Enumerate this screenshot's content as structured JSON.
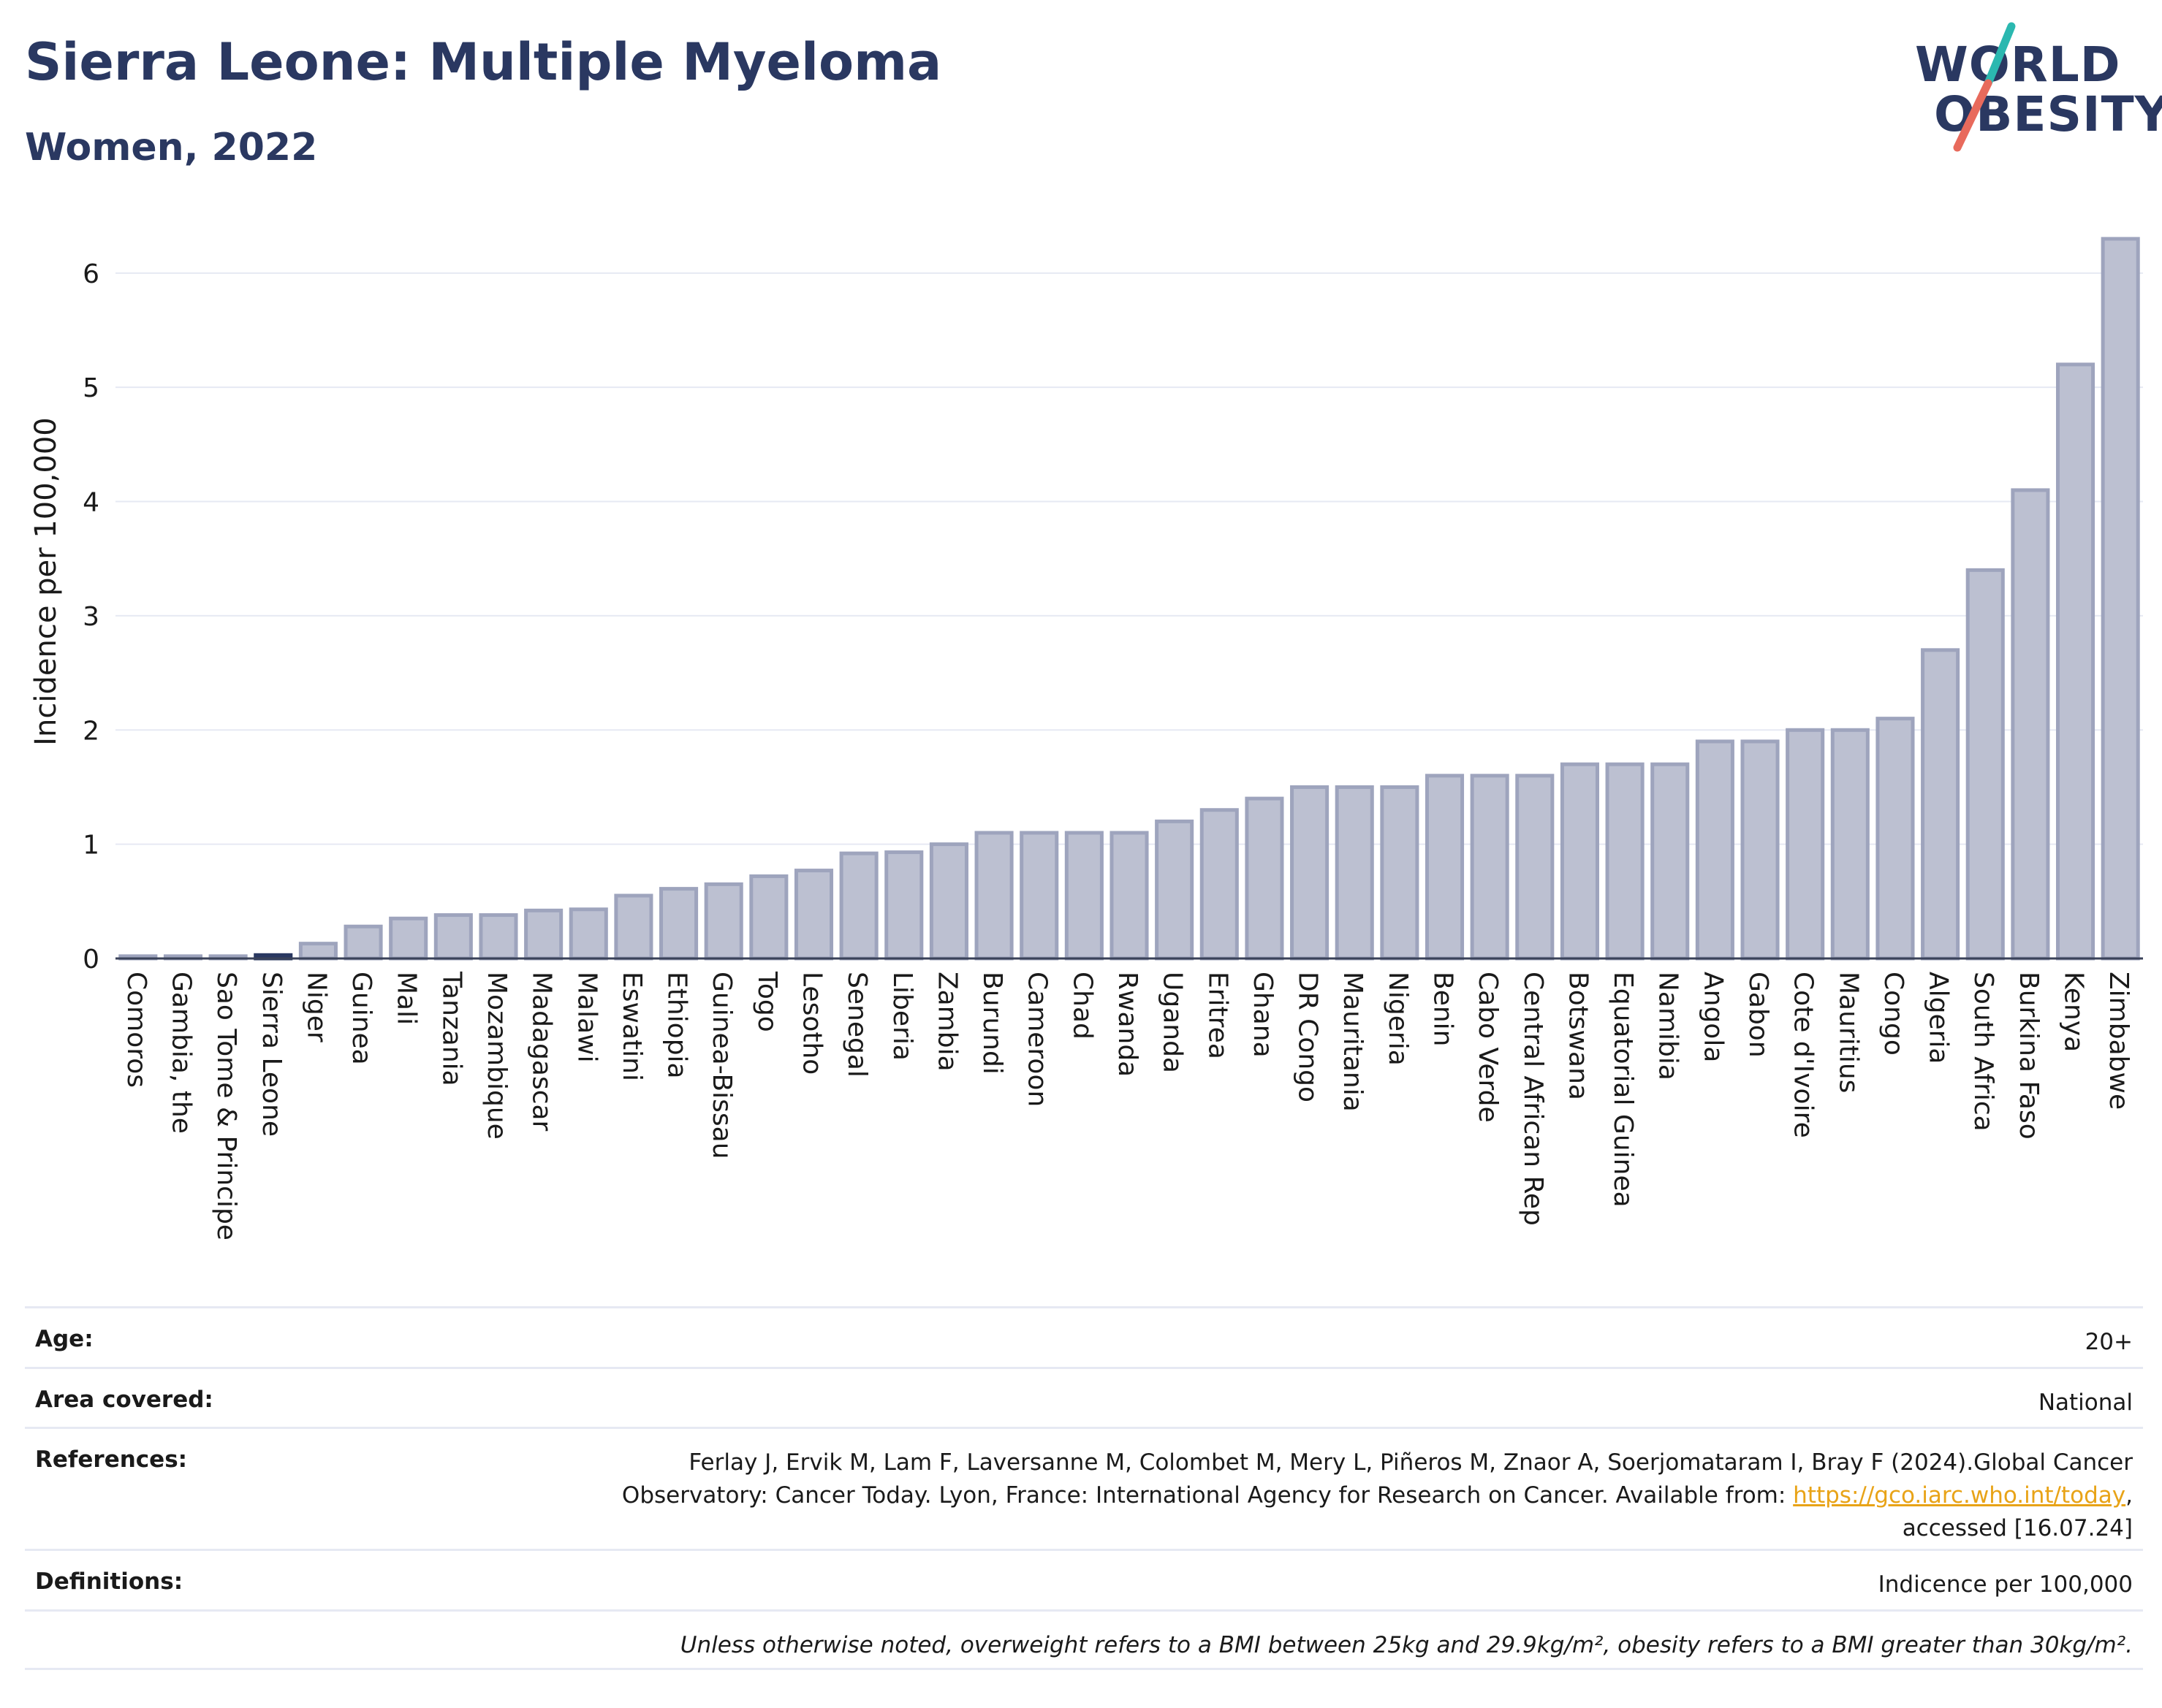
{
  "header": {
    "title": "Sierra Leone: Multiple Myeloma",
    "subtitle": "Women, 2022"
  },
  "logo": {
    "line1": "WORLD",
    "line2": "OBESITY",
    "teal": "#2bb8b0",
    "coral": "#e86a5c"
  },
  "colors": {
    "bar_fill": "#bcc0d1",
    "bar_stroke": "#9ea4bd",
    "highlight_fill": "#2a3861",
    "text_dark": "#2a3861",
    "grid": "#e6e9f3"
  },
  "chart_data": {
    "type": "bar",
    "ylabel": "Incidence per 100,000",
    "xlabel": "",
    "ylim": [
      0,
      6.6
    ],
    "yticks": [
      0,
      1,
      2,
      3,
      4,
      5,
      6
    ],
    "grid": true,
    "highlight": "Sierra Leone",
    "categories": [
      "Comoros",
      "Gambia, the",
      "Sao Tome & Principe",
      "Sierra Leone",
      "Niger",
      "Guinea",
      "Mali",
      "Tanzania",
      "Mozambique",
      "Madagascar",
      "Malawi",
      "Eswatini",
      "Ethiopia",
      "Guinea-Bissau",
      "Togo",
      "Lesotho",
      "Senegal",
      "Liberia",
      "Zambia",
      "Burundi",
      "Cameroon",
      "Chad",
      "Rwanda",
      "Uganda",
      "Eritrea",
      "Ghana",
      "DR Congo",
      "Mauritania",
      "Nigeria",
      "Benin",
      "Cabo Verde",
      "Central African Rep",
      "Botswana",
      "Equatorial Guinea",
      "Namibia",
      "Angola",
      "Gabon",
      "Cote d'Ivoire",
      "Mauritius",
      "Congo",
      "Algeria",
      "South Africa",
      "Burkina Faso",
      "Kenya",
      "Zimbabwe"
    ],
    "values": [
      0.02,
      0.02,
      0.02,
      0.03,
      0.13,
      0.28,
      0.35,
      0.38,
      0.38,
      0.42,
      0.43,
      0.55,
      0.61,
      0.65,
      0.72,
      0.77,
      0.92,
      0.93,
      1.0,
      1.1,
      1.1,
      1.1,
      1.1,
      1.2,
      1.3,
      1.4,
      1.5,
      1.5,
      1.5,
      1.6,
      1.6,
      1.6,
      1.7,
      1.7,
      1.7,
      1.9,
      1.9,
      2.0,
      2.0,
      2.1,
      2.7,
      3.4,
      4.1,
      5.2,
      6.3
    ]
  },
  "meta": {
    "age_label": "Age:",
    "age_value": "20+",
    "area_label": "Area covered:",
    "area_value": "National",
    "references_label": "References:",
    "references_line1": "Ferlay J, Ervik M, Lam F, Laversanne M, Colombet M, Mery L, Piñeros M, Znaor A, Soerjomataram I, Bray F (2024).Global Cancer",
    "references_line2": "Observatory: Cancer Today. Lyon, France: International Agency for Research on Cancer. Available from: ",
    "references_link": "https://gco.iarc.who.int/today",
    "references_line2_end": ",",
    "references_line3": "accessed [16.07.24]",
    "definitions_label": "Definitions:",
    "definitions_value": "Indicence per 100,000",
    "note": "Unless otherwise noted, overweight refers to a BMI between 25kg and 29.9kg/m², obesity refers to a BMI greater than 30kg/m²."
  }
}
